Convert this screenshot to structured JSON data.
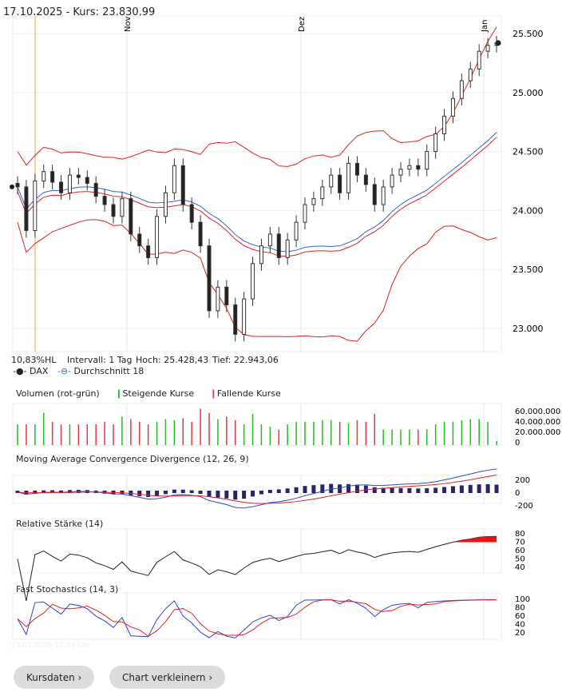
{
  "header": {
    "date": "17.10.2025",
    "price_label": "Kurs: 23.830,99"
  },
  "info": {
    "range": "10,83%HL",
    "interval": "Intervall: 1 Tag",
    "high": "Hoch:  25.428,43",
    "low": "Tief:  22.943,06"
  },
  "legend": {
    "dax": "DAX",
    "avg": "Durchschnitt 18"
  },
  "panels": {
    "volume": "Volumen (rot-grün)",
    "rising": "Steigende Kurse",
    "falling": "Fallende Kurse",
    "macd": "Moving Average Convergence Divergence (12, 26, 9)",
    "rsi": "Relative Stärke (14)",
    "stoch": "Fast Stochastics (14, 3)"
  },
  "timestamp": "13.01.2026 10:09 Uhr",
  "buttons": {
    "kursdaten": "Kursdaten ›",
    "verkleinern": "Chart verkleinern ›"
  },
  "colors": {
    "up": "#22bb22",
    "down": "#ee3344",
    "avg": "#3366cc",
    "band": "#dd2222",
    "cursor": "#f5a623"
  },
  "chart_data": {
    "type": "candlestick",
    "month_labels": [
      {
        "label": "Nov",
        "index": 13
      },
      {
        "label": "Dez",
        "index": 33
      },
      {
        "label": "Jan",
        "index": 54
      }
    ],
    "price_ticks": [
      23000,
      23500,
      24000,
      24500,
      25000,
      25500
    ],
    "price_tick_labels": [
      "23.000",
      "23.500",
      "24.000",
      "24.500",
      "25.000",
      "25.500"
    ],
    "ylim": [
      22850,
      25600
    ],
    "closes": [
      24200,
      23830,
      24250,
      24330,
      24240,
      24150,
      24300,
      24280,
      24230,
      24120,
      24050,
      23950,
      24100,
      23800,
      23700,
      23600,
      23950,
      24150,
      24380,
      24050,
      23900,
      23700,
      23150,
      23350,
      23200,
      22950,
      23250,
      23550,
      23700,
      23800,
      23600,
      23750,
      23900,
      24050,
      24100,
      24200,
      24300,
      24150,
      24400,
      24300,
      24220,
      24050,
      24200,
      24300,
      24350,
      24380,
      24350,
      24500,
      24650,
      24800,
      24950,
      25100,
      25200,
      25350,
      25400,
      25420
    ],
    "volume_ticks": [
      "60.000.000",
      "40.000.000",
      "20.000.000",
      "0"
    ],
    "volumes_m": [
      40,
      40,
      40,
      62,
      45,
      40,
      40,
      40,
      40,
      40,
      45,
      40,
      55,
      50,
      45,
      40,
      45,
      50,
      48,
      52,
      45,
      70,
      62,
      50,
      55,
      48,
      40,
      60,
      40,
      35,
      30,
      40,
      45,
      45,
      45,
      48,
      48,
      45,
      42,
      48,
      45,
      60,
      30,
      30,
      30,
      30,
      30,
      30,
      40,
      45,
      45,
      48,
      50,
      50,
      45,
      8
    ],
    "macd_ticks": [
      "200",
      "0",
      "-200"
    ],
    "rsi_ticks": [
      "80",
      "70",
      "60",
      "50",
      "40"
    ],
    "stoch_ticks": [
      "100",
      "80",
      "60",
      "40",
      "20"
    ]
  }
}
